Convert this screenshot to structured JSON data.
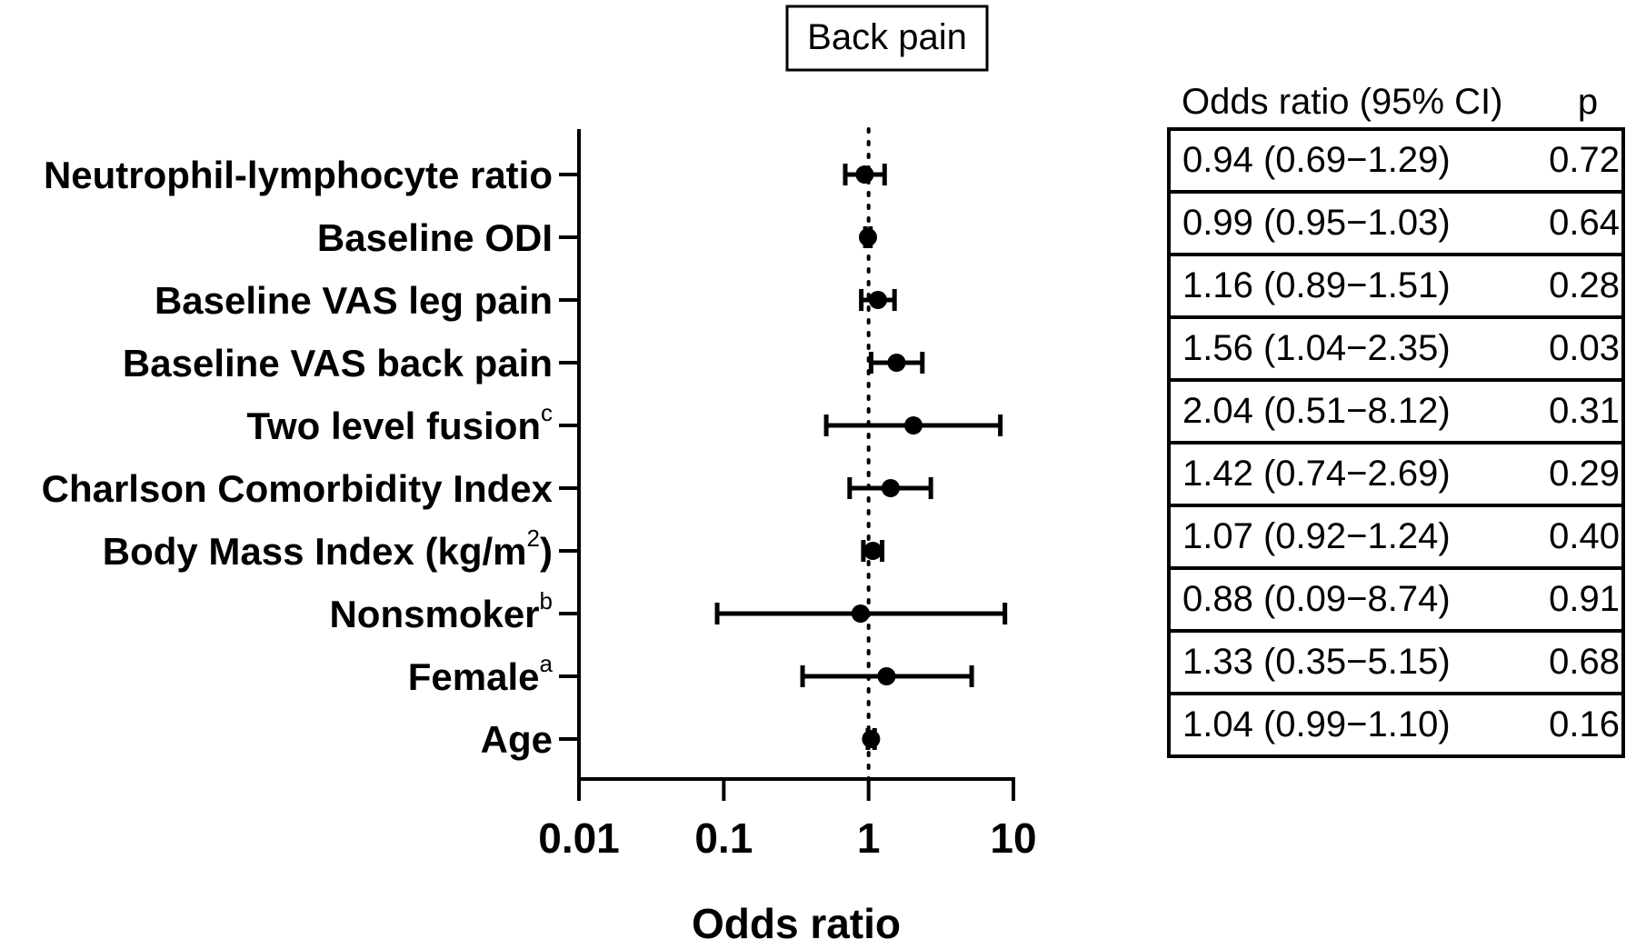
{
  "chart_data": {
    "type": "forest",
    "title": "Back pain",
    "xlabel": "Odds ratio",
    "xscale": "log",
    "xlim": [
      0.01,
      10
    ],
    "xticks": [
      "0.01",
      "0.1",
      "1",
      "10"
    ],
    "reference_line": 1,
    "table_headers": {
      "estimate": "Odds ratio (95% CI)",
      "p": "p"
    },
    "rows": [
      {
        "label": "Neutrophil-lymphocyte ratio",
        "sup": "",
        "or": 0.94,
        "lo": 0.69,
        "hi": 1.29,
        "text": "0.94 (0.69−1.29)",
        "p": "0.72"
      },
      {
        "label": "Baseline ODI",
        "sup": "",
        "or": 0.99,
        "lo": 0.95,
        "hi": 1.03,
        "text": "0.99 (0.95−1.03)",
        "p": "0.64"
      },
      {
        "label": "Baseline VAS leg pain",
        "sup": "",
        "or": 1.16,
        "lo": 0.89,
        "hi": 1.51,
        "text": "1.16 (0.89−1.51)",
        "p": "0.28"
      },
      {
        "label": "Baseline VAS back pain",
        "sup": "",
        "or": 1.56,
        "lo": 1.04,
        "hi": 2.35,
        "text": "1.56 (1.04−2.35)",
        "p": "0.03"
      },
      {
        "label": "Two level fusion",
        "sup": "c",
        "or": 2.04,
        "lo": 0.51,
        "hi": 8.12,
        "text": "2.04 (0.51−8.12)",
        "p": "0.31"
      },
      {
        "label": "Charlson Comorbidity Index",
        "sup": "",
        "or": 1.42,
        "lo": 0.74,
        "hi": 2.69,
        "text": "1.42 (0.74−2.69)",
        "p": "0.29"
      },
      {
        "label": "Body Mass Index (kg/m",
        "sup": "2",
        "suffix": ")",
        "or": 1.07,
        "lo": 0.92,
        "hi": 1.24,
        "text": "1.07 (0.92−1.24)",
        "p": "0.40"
      },
      {
        "label": "Nonsmoker",
        "sup": "b",
        "or": 0.88,
        "lo": 0.09,
        "hi": 8.74,
        "text": "0.88 (0.09−8.74)",
        "p": "0.91"
      },
      {
        "label": "Female",
        "sup": "a",
        "or": 1.33,
        "lo": 0.35,
        "hi": 5.15,
        "text": "1.33 (0.35−5.15)",
        "p": "0.68"
      },
      {
        "label": "Age",
        "sup": "",
        "or": 1.04,
        "lo": 0.99,
        "hi": 1.1,
        "text": "1.04 (0.99−1.10)",
        "p": "0.16"
      }
    ]
  }
}
